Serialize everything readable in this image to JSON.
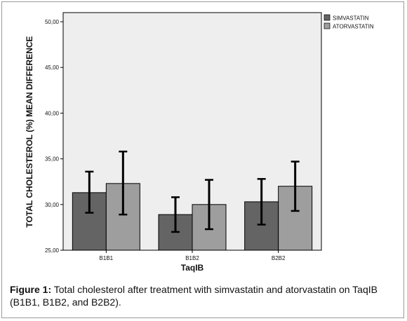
{
  "chart_data": {
    "type": "bar",
    "categories": [
      "B1B1",
      "B1B2",
      "B2B2"
    ],
    "series": [
      {
        "name": "SIMVASTATIN",
        "color": "#646464",
        "values": [
          31.3,
          28.9,
          30.3
        ],
        "error_low": [
          29.1,
          27.0,
          27.8
        ],
        "error_high": [
          33.6,
          30.8,
          32.8
        ]
      },
      {
        "name": "ATORVASTATIN",
        "color": "#9e9e9e",
        "values": [
          32.3,
          30.0,
          32.0
        ],
        "error_low": [
          28.9,
          27.3,
          29.3
        ],
        "error_high": [
          35.8,
          32.7,
          34.7
        ]
      }
    ],
    "xlabel": "TaqIB",
    "ylabel": "TOTAL CHOLESTEROL (%) MEAN DIFFERENCE",
    "ylim": [
      25,
      51
    ],
    "yticks": [
      25,
      30,
      35,
      40,
      45,
      50
    ],
    "ytick_labels": [
      "25,00",
      "30,00",
      "35,00",
      "40,00",
      "45,00",
      "50,00"
    ],
    "legend_position": "top-right",
    "plot_background": "#eeeeee",
    "grid": false
  },
  "caption": {
    "label": "Figure 1:",
    "text": " Total cholesterol after treatment with simvastatin and atorvastatin on TaqIB (B1B1, B1B2, and B2B2)."
  }
}
